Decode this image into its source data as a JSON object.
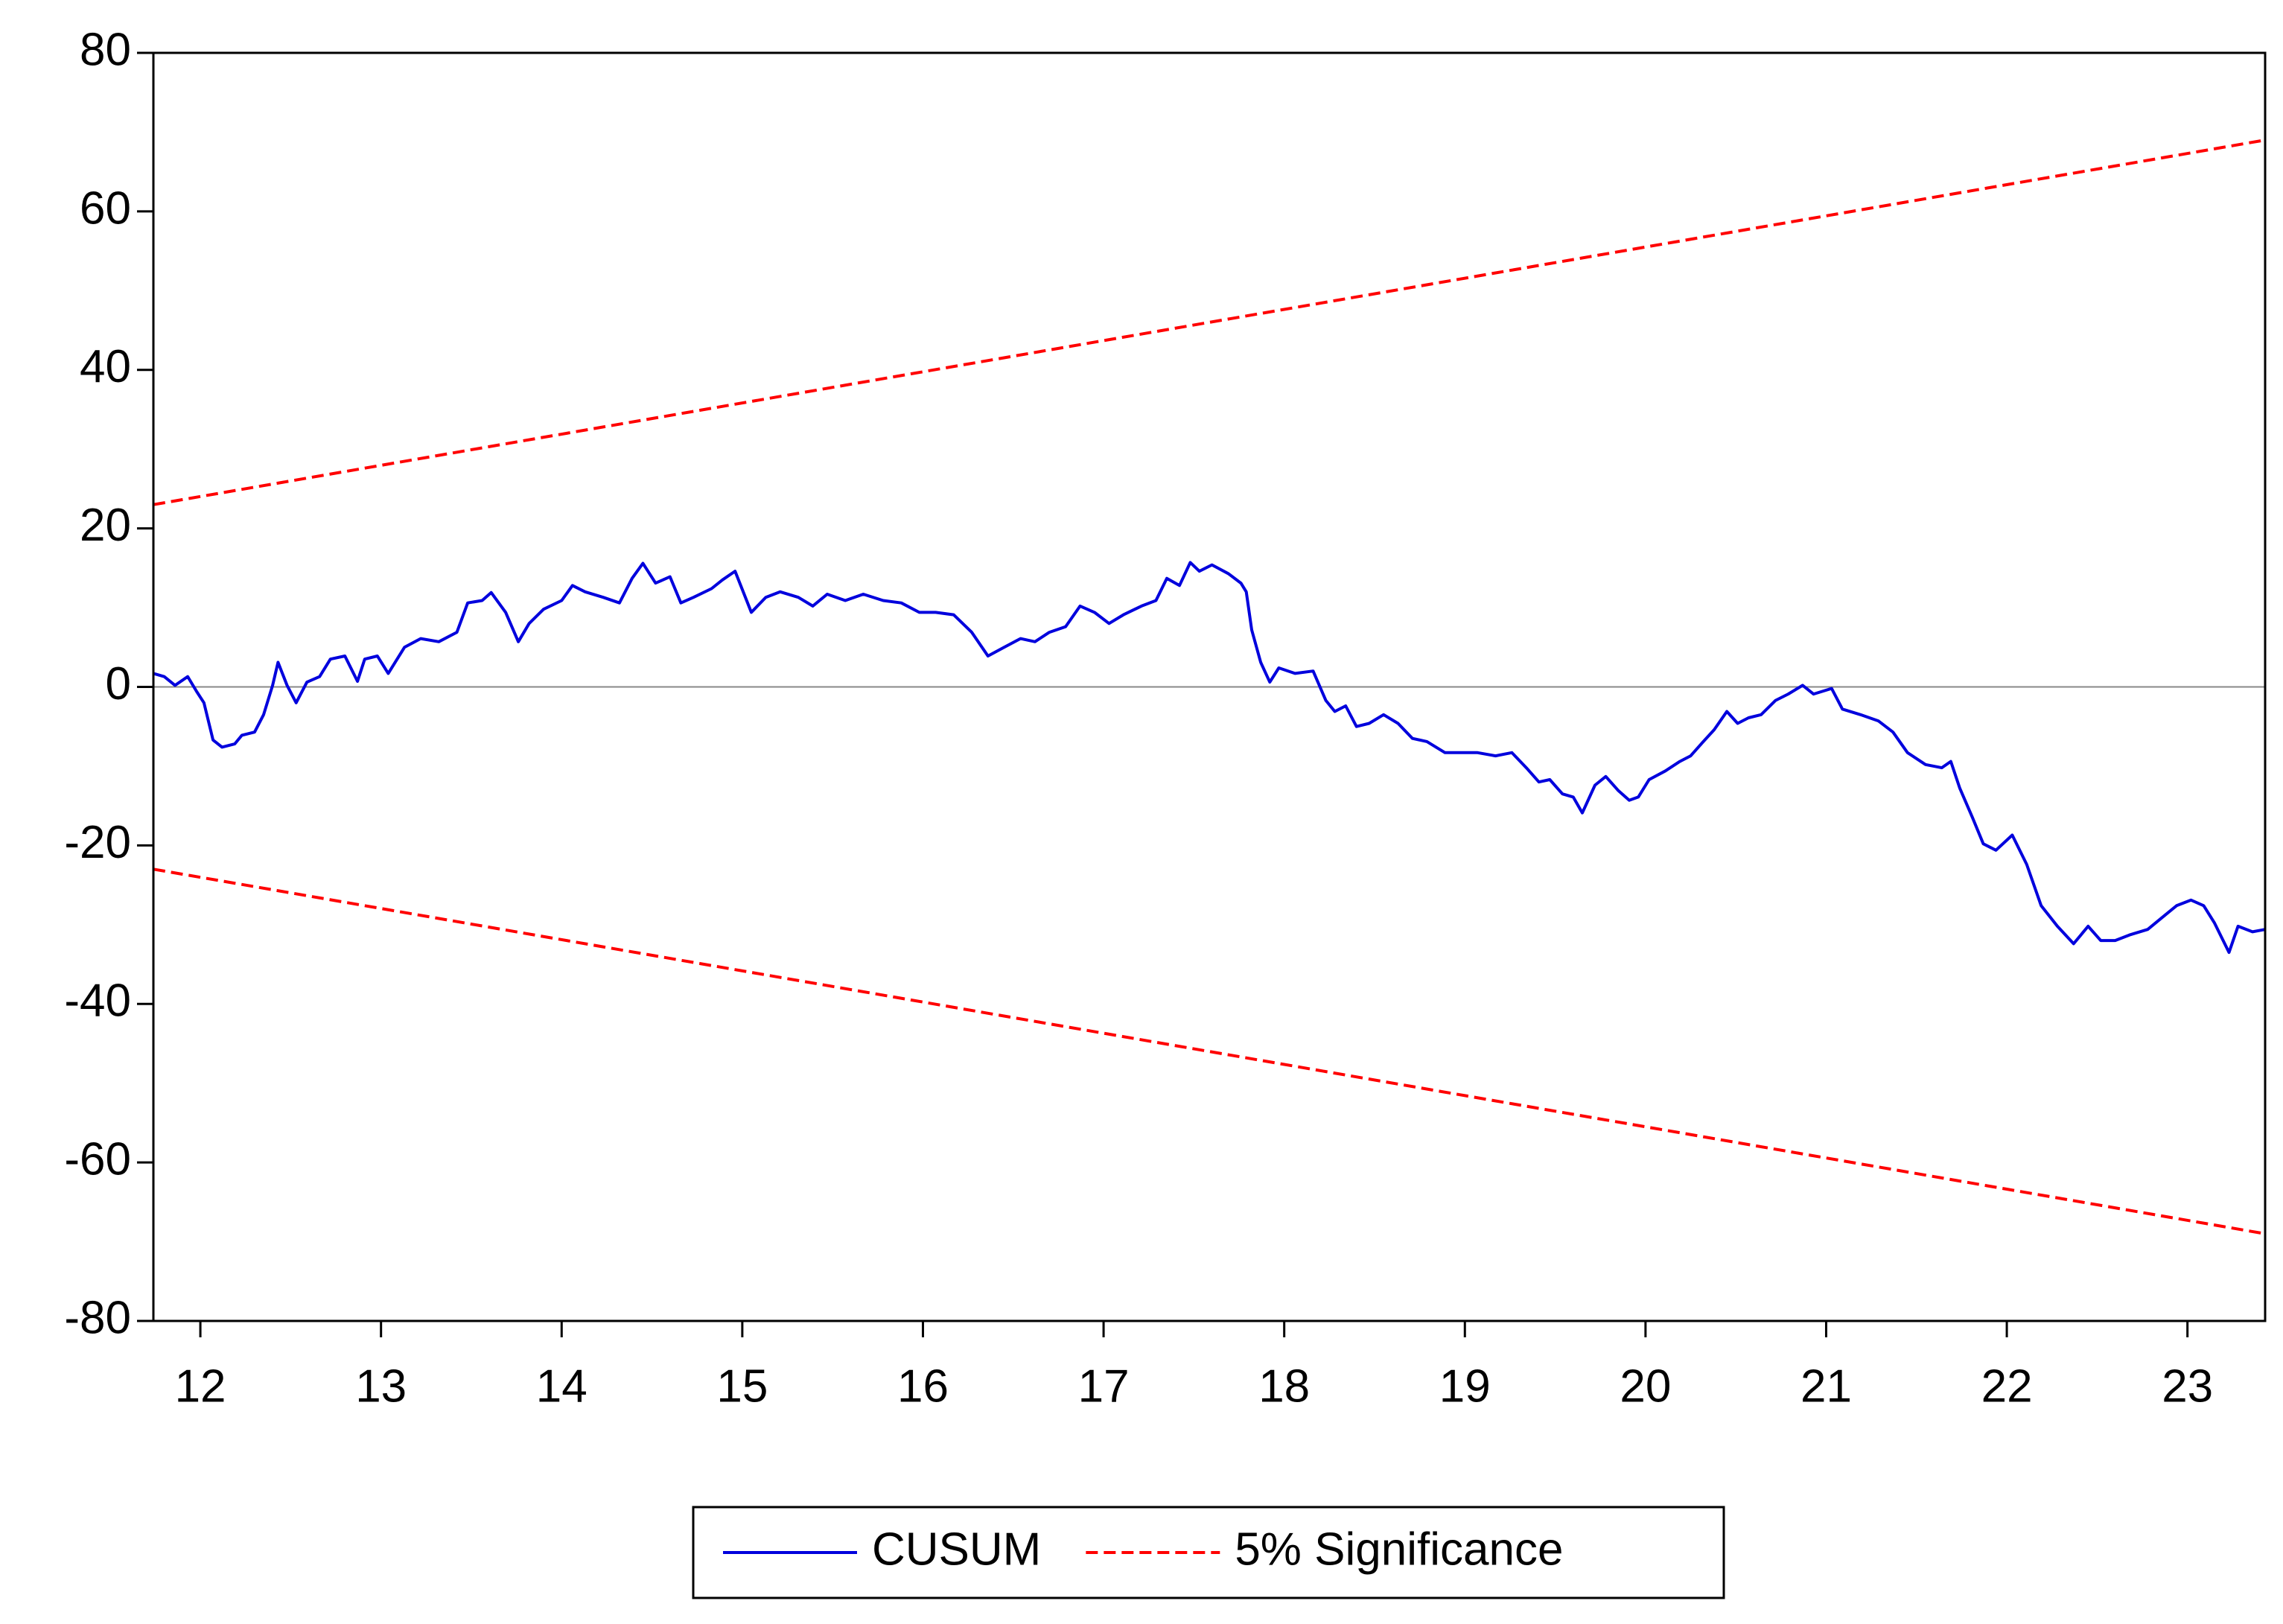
{
  "chart_data": {
    "type": "line",
    "xlim": [
      11.74,
      23.43
    ],
    "xticks": [
      12,
      13,
      14,
      15,
      16,
      17,
      18,
      19,
      20,
      21,
      22,
      23
    ],
    "ylim": [
      -80,
      80
    ],
    "yticks": [
      -80,
      -60,
      -40,
      -20,
      0,
      20,
      40,
      60,
      80
    ],
    "zero_line": true,
    "legend": "bottom",
    "series": [
      {
        "name": "CUSUM",
        "color": "#0000dd",
        "dash": false,
        "x": [
          11.74,
          11.8,
          11.86,
          11.93,
          11.98,
          12.02,
          12.07,
          12.12,
          12.19,
          12.23,
          12.3,
          12.35,
          12.4,
          12.43,
          12.48,
          12.53,
          12.59,
          12.66,
          12.72,
          12.8,
          12.87,
          12.91,
          12.98,
          13.04,
          13.13,
          13.22,
          13.32,
          13.42,
          13.48,
          13.56,
          13.61,
          13.69,
          13.76,
          13.82,
          13.9,
          14.0,
          14.06,
          14.13,
          14.23,
          14.32,
          14.39,
          14.45,
          14.52,
          14.6,
          14.66,
          14.73,
          14.83,
          14.89,
          14.96,
          15.05,
          15.13,
          15.21,
          15.31,
          15.39,
          15.47,
          15.57,
          15.67,
          15.78,
          15.88,
          15.98,
          16.07,
          16.17,
          16.27,
          16.36,
          16.45,
          16.54,
          16.62,
          16.7,
          16.79,
          16.87,
          16.95,
          17.03,
          17.11,
          17.21,
          17.29,
          17.35,
          17.42,
          17.48,
          17.53,
          17.6,
          17.69,
          17.76,
          17.79,
          17.82,
          17.87,
          17.92,
          17.97,
          18.06,
          18.16,
          18.23,
          18.28,
          18.34,
          18.4,
          18.47,
          18.55,
          18.63,
          18.71,
          18.79,
          18.89,
          18.97,
          19.07,
          19.17,
          19.26,
          19.34,
          19.41,
          19.47,
          19.54,
          19.6,
          19.65,
          19.72,
          19.78,
          19.85,
          19.91,
          19.96,
          20.02,
          20.11,
          20.19,
          20.25,
          20.32,
          20.38,
          20.45,
          20.51,
          20.57,
          20.64,
          20.72,
          20.79,
          20.87,
          20.93,
          21.03,
          21.09,
          21.19,
          21.29,
          21.37,
          21.45,
          21.55,
          21.64,
          21.69,
          21.74,
          21.81,
          21.87,
          21.94,
          22.03,
          22.11,
          22.19,
          22.28,
          22.37,
          22.45,
          22.52,
          22.6,
          22.68,
          22.78,
          22.86,
          22.94,
          23.02,
          23.09,
          23.15,
          23.23,
          23.28,
          23.36,
          23.43
        ],
        "values": [
          1.7,
          1.3,
          0.2,
          1.3,
          -0.6,
          -2.0,
          -6.7,
          -7.6,
          -7.2,
          -6.1,
          -5.7,
          -3.5,
          0.2,
          3.1,
          0.2,
          -2.0,
          0.6,
          1.3,
          3.5,
          3.9,
          0.7,
          3.5,
          3.9,
          1.7,
          5.0,
          6.1,
          5.7,
          6.9,
          10.6,
          10.9,
          11.9,
          9.4,
          5.7,
          8.0,
          9.8,
          10.9,
          12.8,
          12.0,
          11.3,
          10.6,
          13.7,
          15.6,
          13.1,
          13.9,
          10.6,
          11.3,
          12.4,
          13.5,
          14.6,
          9.4,
          11.3,
          12.0,
          11.3,
          10.2,
          11.7,
          10.9,
          11.7,
          10.9,
          10.6,
          9.4,
          9.4,
          9.1,
          6.9,
          3.9,
          5.0,
          6.1,
          5.7,
          6.9,
          7.6,
          10.2,
          9.4,
          8.0,
          9.1,
          10.2,
          10.9,
          13.7,
          12.8,
          15.7,
          14.6,
          15.4,
          14.3,
          13.1,
          12.0,
          7.2,
          3.1,
          0.6,
          2.4,
          1.7,
          2.0,
          -1.7,
          -3.1,
          -2.4,
          -5.0,
          -4.6,
          -3.5,
          -4.6,
          -6.5,
          -6.9,
          -8.3,
          -8.3,
          -8.3,
          -8.7,
          -8.3,
          -10.2,
          -12.0,
          -11.7,
          -13.5,
          -13.9,
          -15.9,
          -12.4,
          -11.3,
          -13.1,
          -14.3,
          -13.9,
          -11.7,
          -10.6,
          -9.4,
          -8.7,
          -6.9,
          -5.4,
          -3.1,
          -4.6,
          -3.9,
          -3.5,
          -1.7,
          -0.9,
          0.2,
          -0.9,
          -0.2,
          -2.8,
          -3.5,
          -4.3,
          -5.7,
          -8.3,
          -9.8,
          -10.2,
          -9.4,
          -12.8,
          -16.5,
          -19.8,
          -20.6,
          -18.7,
          -22.4,
          -27.6,
          -30.2,
          -32.4,
          -30.2,
          -32.0,
          -32.0,
          -31.3,
          -30.6,
          -29.1,
          -27.6,
          -26.9,
          -27.6,
          -29.8,
          -33.5,
          -30.2,
          -30.9,
          -30.6
        ]
      },
      {
        "name": "5% Significance",
        "color": "#ff0000",
        "dash": true,
        "x": [
          11.74,
          23.43,
          null,
          11.74,
          23.43
        ],
        "values": [
          23,
          69,
          null,
          -23,
          -69
        ]
      }
    ]
  }
}
